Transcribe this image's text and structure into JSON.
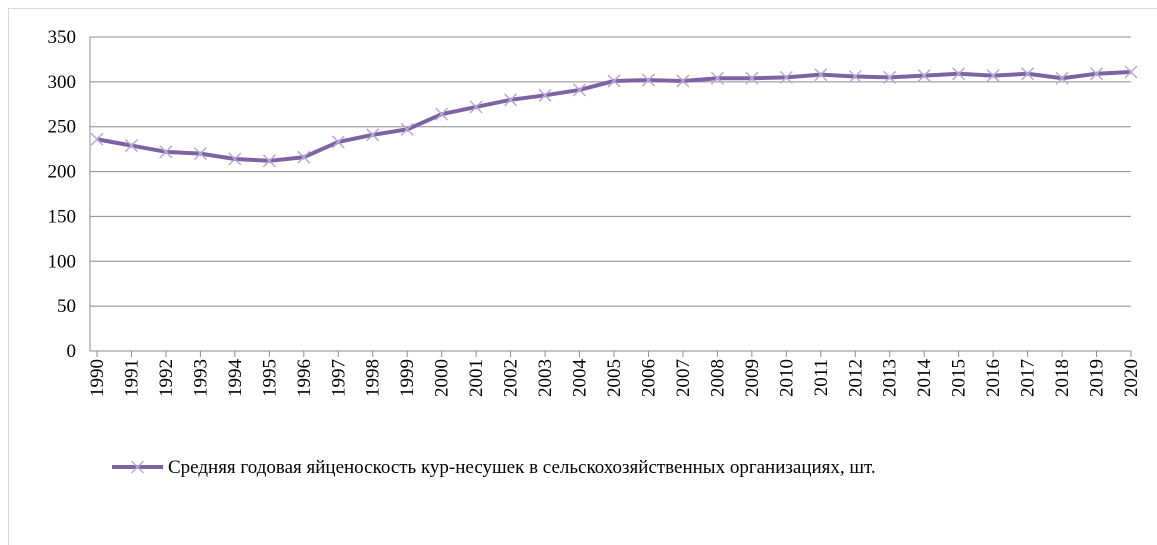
{
  "chart_data": {
    "type": "line",
    "categories": [
      "1990",
      "1991",
      "1992",
      "1993",
      "1994",
      "1995",
      "1996",
      "1997",
      "1998",
      "1999",
      "2000",
      "2001",
      "2002",
      "2003",
      "2004",
      "2005",
      "2006",
      "2007",
      "2008",
      "2009",
      "2010",
      "2011",
      "2012",
      "2013",
      "2014",
      "2015",
      "2016",
      "2017",
      "2018",
      "2019",
      "2020"
    ],
    "series": [
      {
        "name": "Средняя годовая яйценоскость кур-несушек в сельскохозяйственных организациях, шт.",
        "color": "#7f62a4",
        "values": [
          236,
          229,
          222,
          220,
          214,
          212,
          216,
          233,
          241,
          247,
          264,
          272,
          280,
          285,
          291,
          301,
          302,
          301,
          304,
          304,
          305,
          308,
          306,
          305,
          307,
          309,
          307,
          309,
          304,
          309,
          311
        ]
      }
    ],
    "ylim": [
      0,
      350
    ],
    "yticks": [
      0,
      50,
      100,
      150,
      200,
      250,
      300,
      350
    ],
    "grid": true,
    "legend": "bottom"
  }
}
